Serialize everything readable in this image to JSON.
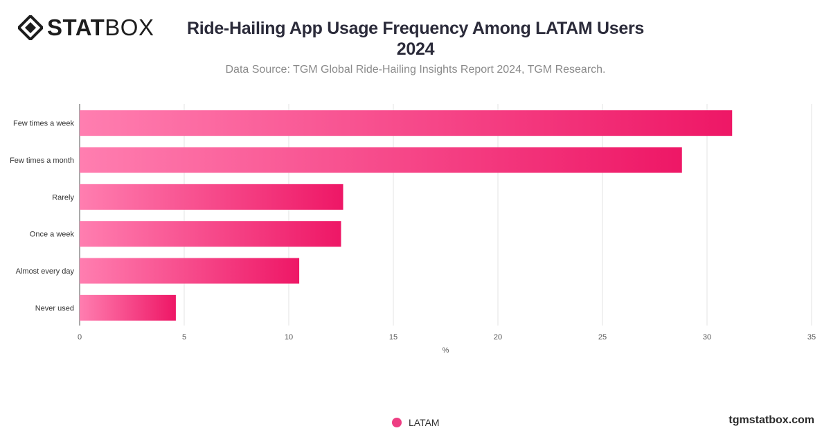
{
  "brand": {
    "logo_bold": "STAT",
    "logo_regular": "BOX",
    "watermark": "tgmstatbox.com"
  },
  "header": {
    "title": "Ride-Hailing App Usage Frequency Among LATAM Users 2024",
    "subtitle": "Data Source: TGM Global Ride-Hailing Insights Report 2024, TGM Research."
  },
  "colors": {
    "bar_start": "#ff7eb0",
    "bar_end": "#ee1766",
    "legend_dot": "#ee3e83",
    "grid": "#e3e3e3"
  },
  "chart_data": {
    "type": "bar",
    "orientation": "horizontal",
    "categories": [
      "Few times a week",
      "Few times a month",
      "Rarely",
      "Once a week",
      "Almost every day",
      "Never used"
    ],
    "series": [
      {
        "name": "LATAM",
        "values": [
          31.2,
          28.8,
          12.6,
          12.5,
          10.5,
          4.6
        ]
      }
    ],
    "xlabel": "%",
    "xlim": [
      0,
      35
    ],
    "xticks": [
      0,
      5,
      10,
      15,
      20,
      25,
      30,
      35
    ],
    "grid": true,
    "legend_position": "bottom"
  }
}
